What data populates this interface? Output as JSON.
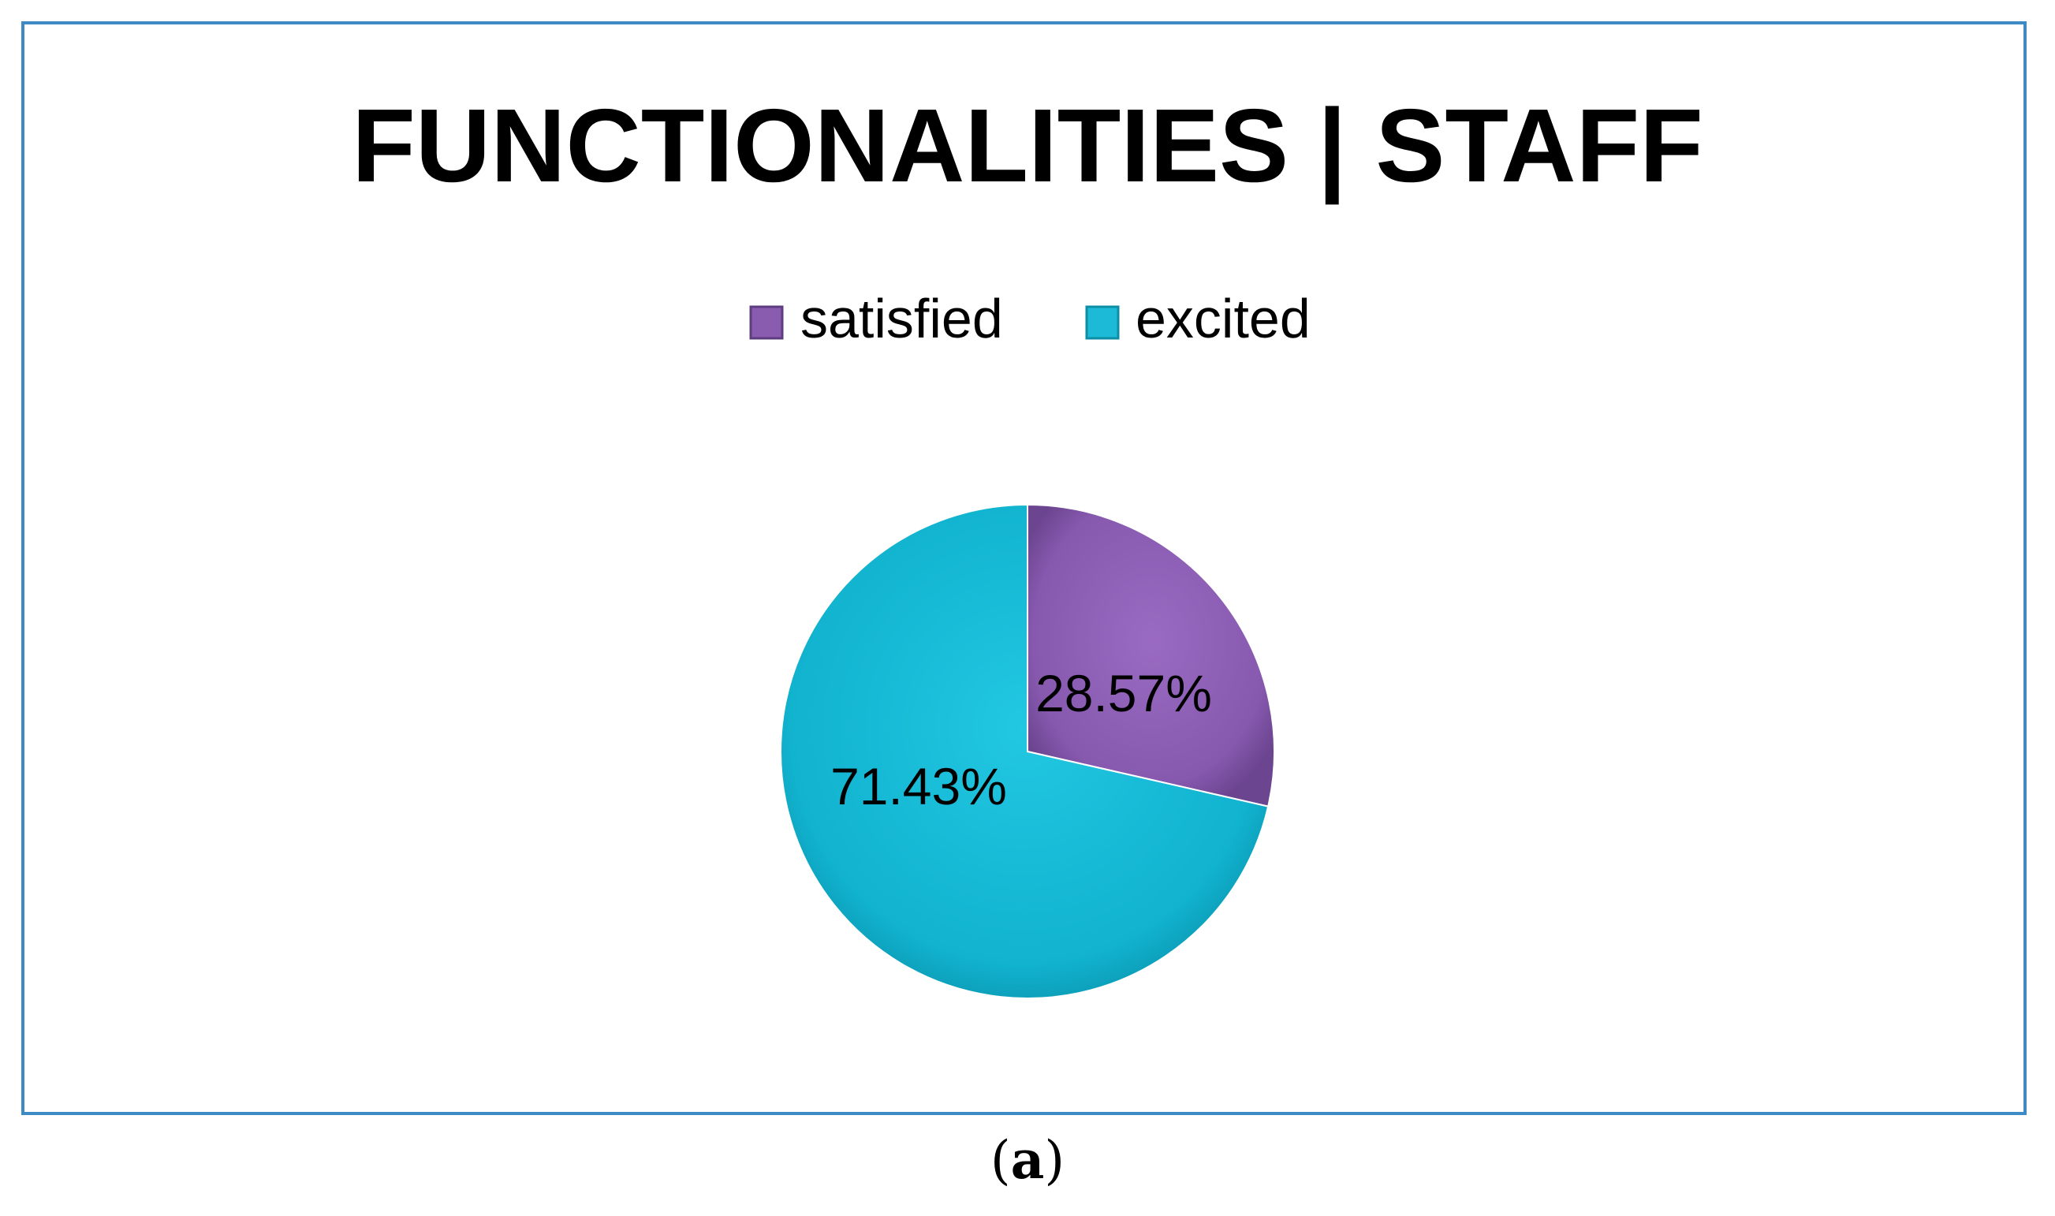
{
  "chart_data": {
    "type": "pie",
    "title": "FUNCTIONALITIES | STAFF",
    "legend_position": "top",
    "slices": [
      {
        "name": "satisfied",
        "value": 28.57,
        "label": "28.57%",
        "color": "#8a5cb0"
      },
      {
        "name": "excited",
        "value": 71.43,
        "label": "71.43%",
        "color": "#1cbad6"
      }
    ]
  },
  "caption": {
    "open": "(",
    "letter": "a",
    "close": ")"
  }
}
